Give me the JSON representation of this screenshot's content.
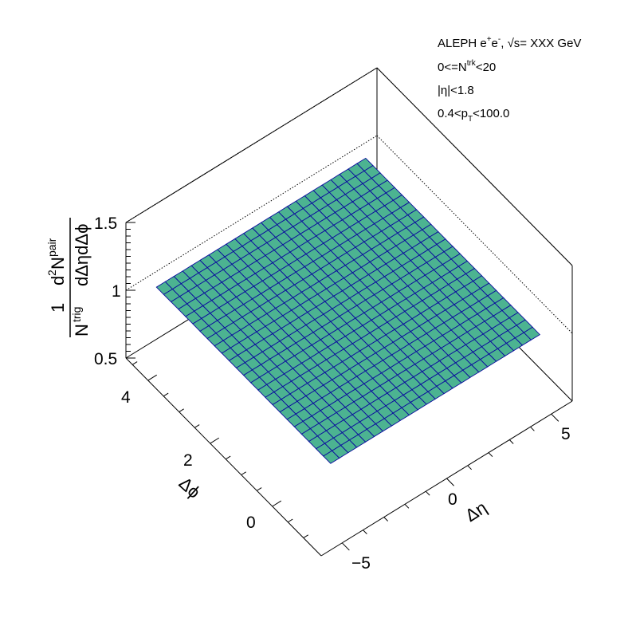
{
  "chart_data": {
    "type": "surface",
    "annotations": {
      "line1_prefix": "ALEPH e",
      "line1_sup1": "+",
      "line1_e2": "e",
      "line1_sup2": "-",
      "line1_sqrt": ", √s= XXX GeV",
      "line2_main": "0<=N",
      "line2_sup": "trk",
      "line2_end": "<20",
      "line3": "|η|<1.8",
      "line4_main": "0.4<p",
      "line4_sub": "T",
      "line4_end": "<100.0"
    },
    "x_axis": {
      "title": "Δη",
      "range": [
        -6,
        6
      ],
      "tick_labels": [
        {
          "value": -5,
          "label": "−5"
        },
        {
          "value": 0,
          "label": "0"
        },
        {
          "value": 5,
          "label": "5"
        }
      ]
    },
    "y_axis": {
      "title": "Δϕ",
      "range": [
        -1.57,
        4.71
      ],
      "tick_labels": [
        {
          "value": 0,
          "label": "0"
        },
        {
          "value": 2,
          "label": "2"
        },
        {
          "value": 4,
          "label": "4"
        }
      ]
    },
    "z_axis": {
      "title_num1": "1",
      "title_den1": "N",
      "title_den1_sup": "trig",
      "title_num2": "d",
      "title_num2_sup": "2",
      "title_num2_main": "N",
      "title_num2_main_sup": "pair",
      "title_den2": "dΔηdΔϕ",
      "range": [
        0.5,
        1.5
      ],
      "tick_labels": [
        {
          "value": 0.5,
          "label": "0.5"
        },
        {
          "value": 1,
          "label": "1"
        },
        {
          "value": 1.5,
          "label": "1.5"
        }
      ]
    },
    "surface": {
      "value": 1.0,
      "grid_eta_bins": 24,
      "grid_phi_bins": 24,
      "fill_color": "#4cb391",
      "line_color": "#0a0a9e"
    }
  }
}
